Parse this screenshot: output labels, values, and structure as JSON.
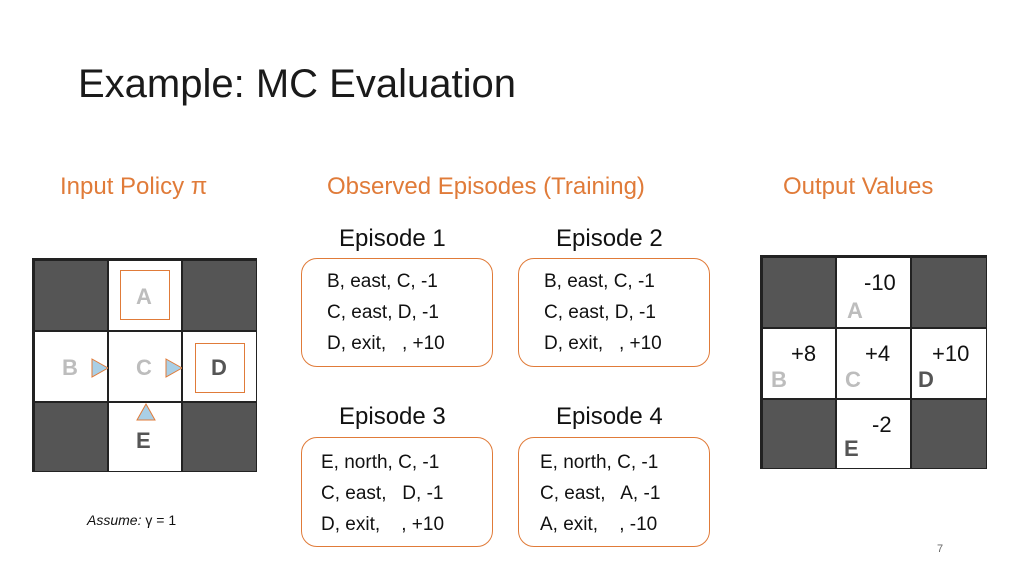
{
  "slide": {
    "title": "Example: MC Evaluation",
    "page_number": "7"
  },
  "sections": {
    "input_policy": "Input Policy π",
    "observed_episodes": "Observed Episodes (Training)",
    "output_values": "Output Values"
  },
  "policy_grid": {
    "states": [
      "A",
      "B",
      "C",
      "D",
      "E"
    ],
    "arrows": [
      {
        "state": "B",
        "direction": "east"
      },
      {
        "state": "C",
        "direction": "east"
      },
      {
        "state": "E",
        "direction": "north"
      }
    ],
    "assume_label": "Assume:",
    "assume_value": "γ = 1"
  },
  "episodes": [
    {
      "title": "Episode 1",
      "lines": [
        "B, east, C, -1",
        "C, east, D, -1",
        "D, exit,   , +10"
      ]
    },
    {
      "title": "Episode 2",
      "lines": [
        "B, east, C, -1",
        "C, east, D, -1",
        "D, exit,   , +10"
      ]
    },
    {
      "title": "Episode 3",
      "lines": [
        "E, north, C, -1",
        "C, east,   D, -1",
        "D, exit,    , +10"
      ]
    },
    {
      "title": "Episode 4",
      "lines": [
        "E, north, C, -1",
        "C, east,   A, -1",
        "A, exit,    , -10"
      ]
    }
  ],
  "output_grid": {
    "states": [
      "A",
      "B",
      "C",
      "D",
      "E"
    ],
    "values": {
      "A": "-10",
      "B": "+8",
      "C": "+4",
      "D": "+10",
      "E": "-2"
    }
  },
  "colors": {
    "accent": "#e07b39",
    "dark_cell": "#555555",
    "arrow_fill": "#a9cfe6"
  }
}
